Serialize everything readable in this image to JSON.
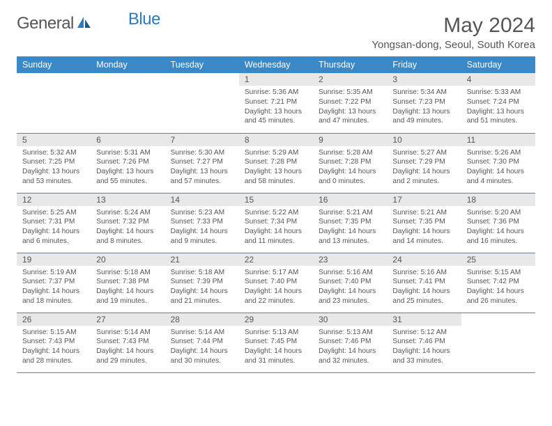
{
  "logo": {
    "text1": "General",
    "text2": "Blue"
  },
  "title": "May 2024",
  "location": "Yongsan-dong, Seoul, South Korea",
  "day_headers": [
    "Sunday",
    "Monday",
    "Tuesday",
    "Wednesday",
    "Thursday",
    "Friday",
    "Saturday"
  ],
  "colors": {
    "header_bg": "#3b88c6",
    "row_bg": "#e8e8e8",
    "border": "#3b88c6",
    "text": "#555555"
  },
  "weeks": [
    [
      {
        "empty": true
      },
      {
        "empty": true
      },
      {
        "empty": true
      },
      {
        "n": "1",
        "sr": "Sunrise: 5:36 AM",
        "ss": "Sunset: 7:21 PM",
        "dl1": "Daylight: 13 hours",
        "dl2": "and 45 minutes."
      },
      {
        "n": "2",
        "sr": "Sunrise: 5:35 AM",
        "ss": "Sunset: 7:22 PM",
        "dl1": "Daylight: 13 hours",
        "dl2": "and 47 minutes."
      },
      {
        "n": "3",
        "sr": "Sunrise: 5:34 AM",
        "ss": "Sunset: 7:23 PM",
        "dl1": "Daylight: 13 hours",
        "dl2": "and 49 minutes."
      },
      {
        "n": "4",
        "sr": "Sunrise: 5:33 AM",
        "ss": "Sunset: 7:24 PM",
        "dl1": "Daylight: 13 hours",
        "dl2": "and 51 minutes."
      }
    ],
    [
      {
        "n": "5",
        "sr": "Sunrise: 5:32 AM",
        "ss": "Sunset: 7:25 PM",
        "dl1": "Daylight: 13 hours",
        "dl2": "and 53 minutes."
      },
      {
        "n": "6",
        "sr": "Sunrise: 5:31 AM",
        "ss": "Sunset: 7:26 PM",
        "dl1": "Daylight: 13 hours",
        "dl2": "and 55 minutes."
      },
      {
        "n": "7",
        "sr": "Sunrise: 5:30 AM",
        "ss": "Sunset: 7:27 PM",
        "dl1": "Daylight: 13 hours",
        "dl2": "and 57 minutes."
      },
      {
        "n": "8",
        "sr": "Sunrise: 5:29 AM",
        "ss": "Sunset: 7:28 PM",
        "dl1": "Daylight: 13 hours",
        "dl2": "and 58 minutes."
      },
      {
        "n": "9",
        "sr": "Sunrise: 5:28 AM",
        "ss": "Sunset: 7:28 PM",
        "dl1": "Daylight: 14 hours",
        "dl2": "and 0 minutes."
      },
      {
        "n": "10",
        "sr": "Sunrise: 5:27 AM",
        "ss": "Sunset: 7:29 PM",
        "dl1": "Daylight: 14 hours",
        "dl2": "and 2 minutes."
      },
      {
        "n": "11",
        "sr": "Sunrise: 5:26 AM",
        "ss": "Sunset: 7:30 PM",
        "dl1": "Daylight: 14 hours",
        "dl2": "and 4 minutes."
      }
    ],
    [
      {
        "n": "12",
        "sr": "Sunrise: 5:25 AM",
        "ss": "Sunset: 7:31 PM",
        "dl1": "Daylight: 14 hours",
        "dl2": "and 6 minutes."
      },
      {
        "n": "13",
        "sr": "Sunrise: 5:24 AM",
        "ss": "Sunset: 7:32 PM",
        "dl1": "Daylight: 14 hours",
        "dl2": "and 8 minutes."
      },
      {
        "n": "14",
        "sr": "Sunrise: 5:23 AM",
        "ss": "Sunset: 7:33 PM",
        "dl1": "Daylight: 14 hours",
        "dl2": "and 9 minutes."
      },
      {
        "n": "15",
        "sr": "Sunrise: 5:22 AM",
        "ss": "Sunset: 7:34 PM",
        "dl1": "Daylight: 14 hours",
        "dl2": "and 11 minutes."
      },
      {
        "n": "16",
        "sr": "Sunrise: 5:21 AM",
        "ss": "Sunset: 7:35 PM",
        "dl1": "Daylight: 14 hours",
        "dl2": "and 13 minutes."
      },
      {
        "n": "17",
        "sr": "Sunrise: 5:21 AM",
        "ss": "Sunset: 7:35 PM",
        "dl1": "Daylight: 14 hours",
        "dl2": "and 14 minutes."
      },
      {
        "n": "18",
        "sr": "Sunrise: 5:20 AM",
        "ss": "Sunset: 7:36 PM",
        "dl1": "Daylight: 14 hours",
        "dl2": "and 16 minutes."
      }
    ],
    [
      {
        "n": "19",
        "sr": "Sunrise: 5:19 AM",
        "ss": "Sunset: 7:37 PM",
        "dl1": "Daylight: 14 hours",
        "dl2": "and 18 minutes."
      },
      {
        "n": "20",
        "sr": "Sunrise: 5:18 AM",
        "ss": "Sunset: 7:38 PM",
        "dl1": "Daylight: 14 hours",
        "dl2": "and 19 minutes."
      },
      {
        "n": "21",
        "sr": "Sunrise: 5:18 AM",
        "ss": "Sunset: 7:39 PM",
        "dl1": "Daylight: 14 hours",
        "dl2": "and 21 minutes."
      },
      {
        "n": "22",
        "sr": "Sunrise: 5:17 AM",
        "ss": "Sunset: 7:40 PM",
        "dl1": "Daylight: 14 hours",
        "dl2": "and 22 minutes."
      },
      {
        "n": "23",
        "sr": "Sunrise: 5:16 AM",
        "ss": "Sunset: 7:40 PM",
        "dl1": "Daylight: 14 hours",
        "dl2": "and 23 minutes."
      },
      {
        "n": "24",
        "sr": "Sunrise: 5:16 AM",
        "ss": "Sunset: 7:41 PM",
        "dl1": "Daylight: 14 hours",
        "dl2": "and 25 minutes."
      },
      {
        "n": "25",
        "sr": "Sunrise: 5:15 AM",
        "ss": "Sunset: 7:42 PM",
        "dl1": "Daylight: 14 hours",
        "dl2": "and 26 minutes."
      }
    ],
    [
      {
        "n": "26",
        "sr": "Sunrise: 5:15 AM",
        "ss": "Sunset: 7:43 PM",
        "dl1": "Daylight: 14 hours",
        "dl2": "and 28 minutes."
      },
      {
        "n": "27",
        "sr": "Sunrise: 5:14 AM",
        "ss": "Sunset: 7:43 PM",
        "dl1": "Daylight: 14 hours",
        "dl2": "and 29 minutes."
      },
      {
        "n": "28",
        "sr": "Sunrise: 5:14 AM",
        "ss": "Sunset: 7:44 PM",
        "dl1": "Daylight: 14 hours",
        "dl2": "and 30 minutes."
      },
      {
        "n": "29",
        "sr": "Sunrise: 5:13 AM",
        "ss": "Sunset: 7:45 PM",
        "dl1": "Daylight: 14 hours",
        "dl2": "and 31 minutes."
      },
      {
        "n": "30",
        "sr": "Sunrise: 5:13 AM",
        "ss": "Sunset: 7:46 PM",
        "dl1": "Daylight: 14 hours",
        "dl2": "and 32 minutes."
      },
      {
        "n": "31",
        "sr": "Sunrise: 5:12 AM",
        "ss": "Sunset: 7:46 PM",
        "dl1": "Daylight: 14 hours",
        "dl2": "and 33 minutes."
      },
      {
        "empty": true
      }
    ]
  ]
}
